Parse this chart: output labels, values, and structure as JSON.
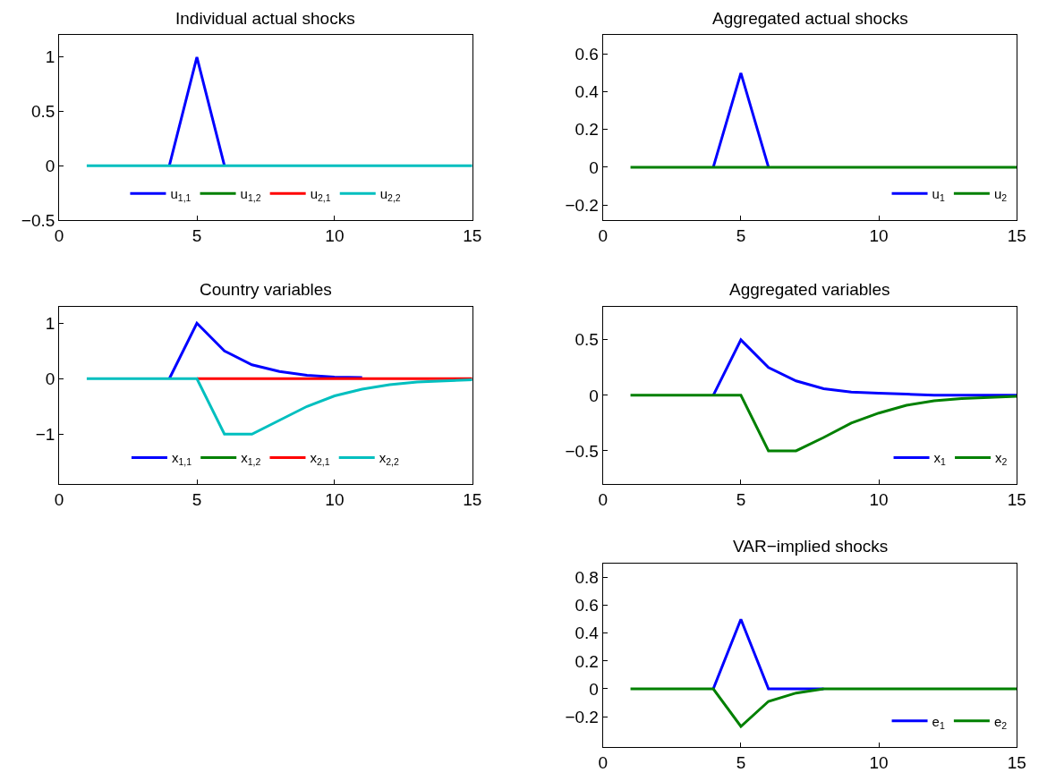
{
  "chart_data": [
    {
      "type": "line",
      "title": "Individual actual shocks",
      "x": [
        1,
        2,
        3,
        4,
        5,
        6,
        7,
        8,
        9,
        10,
        11,
        12,
        13,
        14,
        15
      ],
      "xlim": [
        0,
        15
      ],
      "xticks": [
        0,
        5,
        10,
        15
      ],
      "ylim": [
        -0.5,
        1.2
      ],
      "yticks": [
        -0.5,
        0,
        0.5,
        1
      ],
      "legend": "bottom",
      "marker": "none",
      "line_style": "solid",
      "series": [
        {
          "name": "u$_{1,1}$",
          "color": "#0000ff",
          "values": [
            null,
            null,
            null,
            0,
            1,
            0,
            null,
            null,
            null,
            null,
            null,
            null,
            null,
            null,
            null
          ]
        },
        {
          "name": "u$_{1,2}$",
          "color": "#008000",
          "values": [
            null,
            null,
            null,
            null,
            null,
            null,
            null,
            null,
            null,
            null,
            null,
            null,
            null,
            null,
            null
          ]
        },
        {
          "name": "u$_{2,1}$",
          "color": "#ff0000",
          "values": [
            null,
            null,
            null,
            null,
            null,
            null,
            null,
            null,
            null,
            null,
            null,
            null,
            null,
            null,
            null
          ]
        },
        {
          "name": "u$_{2,2}$",
          "color": "#00bfbf",
          "values": [
            0,
            0,
            0,
            0,
            0,
            0,
            0,
            0,
            0,
            0,
            0,
            0,
            0,
            0,
            0
          ]
        }
      ]
    },
    {
      "type": "line",
      "title": "Aggregated actual shocks",
      "x": [
        1,
        2,
        3,
        4,
        5,
        6,
        7,
        8,
        9,
        10,
        11,
        12,
        13,
        14,
        15
      ],
      "xlim": [
        0,
        15
      ],
      "xticks": [
        0,
        5,
        10,
        15
      ],
      "ylim": [
        -0.28,
        0.7
      ],
      "yticks": [
        -0.2,
        0,
        0.2,
        0.4,
        0.6
      ],
      "legend": "bottom right",
      "marker": "none",
      "line_style": "solid",
      "series": [
        {
          "name": "u$_{1}$",
          "color": "#0000ff",
          "values": [
            null,
            null,
            null,
            0,
            0.5,
            0,
            null,
            null,
            null,
            null,
            null,
            null,
            null,
            null,
            null
          ]
        },
        {
          "name": "u$_{2}$",
          "color": "#008000",
          "values": [
            0,
            0,
            0,
            0,
            0,
            0,
            0,
            0,
            0,
            0,
            0,
            0,
            0,
            0,
            0
          ]
        }
      ]
    },
    {
      "type": "line",
      "title": "Country variables",
      "x": [
        1,
        2,
        3,
        4,
        5,
        6,
        7,
        8,
        9,
        10,
        11,
        12,
        13,
        14,
        15
      ],
      "xlim": [
        0,
        15
      ],
      "xticks": [
        0,
        5,
        10,
        15
      ],
      "ylim": [
        -1.9,
        1.3
      ],
      "yticks": [
        -1,
        0,
        1
      ],
      "legend": "bottom",
      "marker": "none",
      "line_style": "solid",
      "series": [
        {
          "name": "x$_{1,1}$",
          "color": "#0000ff",
          "values": [
            null,
            null,
            null,
            0,
            1,
            0.5,
            0.25,
            0.13,
            0.06,
            0.03,
            0.02,
            null,
            null,
            null,
            null
          ]
        },
        {
          "name": "x$_{1,2}$",
          "color": "#008000",
          "values": [
            null,
            null,
            null,
            null,
            null,
            null,
            null,
            null,
            null,
            null,
            null,
            null,
            null,
            null,
            null
          ]
        },
        {
          "name": "x$_{2,1}$",
          "color": "#ff0000",
          "values": [
            null,
            null,
            null,
            null,
            0,
            0,
            0,
            0,
            0,
            0,
            0,
            0,
            0,
            0,
            0
          ]
        },
        {
          "name": "x$_{2,2}$",
          "color": "#00bfbf",
          "values": [
            0,
            0,
            0,
            0,
            0,
            -1,
            -1,
            -0.75,
            -0.5,
            -0.31,
            -0.19,
            -0.11,
            -0.06,
            -0.04,
            -0.02
          ]
        }
      ]
    },
    {
      "type": "line",
      "title": "Aggregated variables",
      "x": [
        1,
        2,
        3,
        4,
        5,
        6,
        7,
        8,
        9,
        10,
        11,
        12,
        13,
        14,
        15
      ],
      "xlim": [
        0,
        15
      ],
      "xticks": [
        0,
        5,
        10,
        15
      ],
      "ylim": [
        -0.8,
        0.8
      ],
      "yticks": [
        -0.5,
        0,
        0.5
      ],
      "legend": "bottom right",
      "marker": "none",
      "line_style": "solid",
      "series": [
        {
          "name": "x$_{1}$",
          "color": "#0000ff",
          "values": [
            null,
            null,
            null,
            0,
            0.5,
            0.25,
            0.13,
            0.06,
            0.03,
            0.02,
            0.01,
            0,
            0,
            0,
            0
          ]
        },
        {
          "name": "x$_{2}$",
          "color": "#008000",
          "values": [
            0,
            0,
            0,
            0,
            0,
            -0.5,
            -0.5,
            -0.38,
            -0.25,
            -0.16,
            -0.09,
            -0.05,
            -0.03,
            -0.02,
            -0.01
          ]
        }
      ]
    },
    {
      "type": "line",
      "title": "VAR−implied shocks",
      "x": [
        1,
        2,
        3,
        4,
        5,
        6,
        7,
        8,
        9,
        10,
        11,
        12,
        13,
        14,
        15
      ],
      "xlim": [
        0,
        15
      ],
      "xticks": [
        0,
        5,
        10,
        15
      ],
      "ylim": [
        -0.42,
        0.9
      ],
      "yticks": [
        -0.2,
        0,
        0.2,
        0.4,
        0.6,
        0.8
      ],
      "legend": "bottom right",
      "marker": "none",
      "line_style": "solid",
      "series": [
        {
          "name": "e$_{1}$",
          "color": "#0000ff",
          "values": [
            null,
            null,
            null,
            0,
            0.5,
            0,
            0,
            0,
            null,
            null,
            null,
            null,
            null,
            null,
            null
          ]
        },
        {
          "name": "e$_{2}$",
          "color": "#008000",
          "values": [
            0,
            0,
            0,
            0,
            -0.27,
            -0.09,
            -0.03,
            0,
            0,
            0,
            0,
            0,
            0,
            0,
            0
          ]
        }
      ]
    }
  ]
}
